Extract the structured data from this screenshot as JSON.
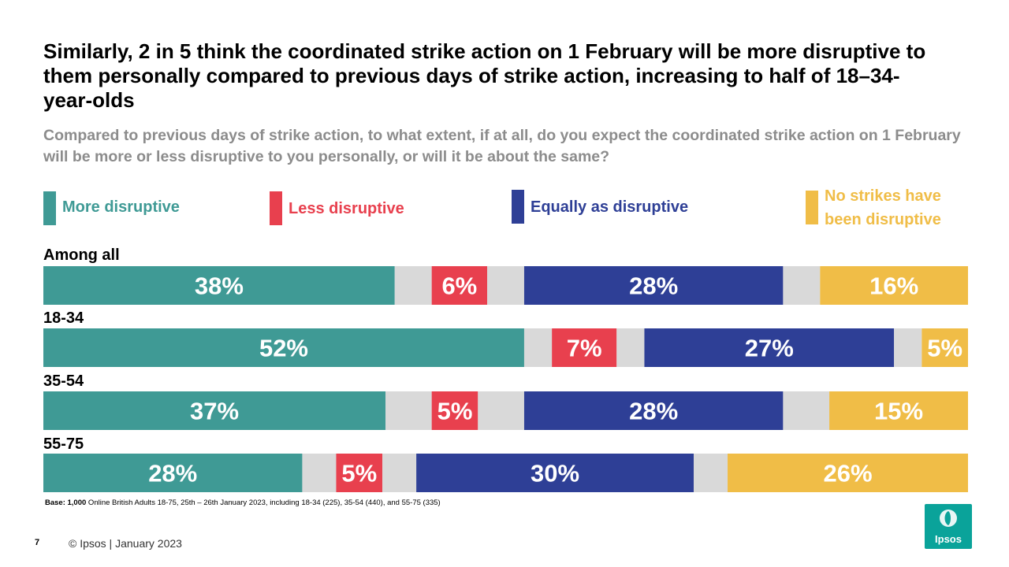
{
  "slide": {
    "title": "Similarly, 2 in 5 think the coordinated strike action on 1 February will be more disruptive to them personally compared to previous days of strike action, increasing to half of 18–34-year-olds",
    "subtitle": "Compared to previous days of strike action, to what extent, if at all, do you expect the coordinated strike action on 1 February will be more or less disruptive to you personally, or will it be about the same?",
    "base_bold": "Base: 1,000",
    "base_rest": " Online British Adults 18-75, 25th – 26th January 2023, including 18-34 (225), 35-54 (440), and 55-75 (335)",
    "page_number": "7",
    "copyright": "© Ipsos | January 2023",
    "logo_text": "Ipsos"
  },
  "legend": [
    {
      "label": "More disruptive",
      "color": "#3f9a95"
    },
    {
      "label": "Less disruptive",
      "color": "#e8404e"
    },
    {
      "label": "Equally as disruptive",
      "color": "#2e3f96"
    },
    {
      "label": "No strikes have been disruptive",
      "color": "#f0bd47"
    }
  ],
  "chart_data": {
    "type": "bar",
    "orientation": "horizontal-stacked",
    "categories": [
      "Among all",
      "18-34",
      "35-54",
      "55-75"
    ],
    "series": [
      {
        "name": "More disruptive",
        "color": "#3f9a95",
        "values": [
          38,
          52,
          37,
          28
        ],
        "labels": [
          "38%",
          "52%",
          "37%",
          "28%"
        ]
      },
      {
        "name": "Less disruptive",
        "color": "#e8404e",
        "values": [
          6,
          7,
          5,
          5
        ],
        "labels": [
          "6%",
          "7%",
          "5%",
          "5%"
        ]
      },
      {
        "name": "Equally as disruptive",
        "color": "#2e3f96",
        "values": [
          28,
          27,
          28,
          30
        ],
        "labels": [
          "28%",
          "27%",
          "28%",
          "30%"
        ]
      },
      {
        "name": "No strikes have been disruptive",
        "color": "#f0bd47",
        "values": [
          16,
          5,
          15,
          26
        ],
        "labels": [
          "16%",
          "5%",
          "15%",
          "26%"
        ]
      }
    ],
    "remainder_color": "#d9d9d9",
    "xlim": [
      0,
      100
    ]
  }
}
